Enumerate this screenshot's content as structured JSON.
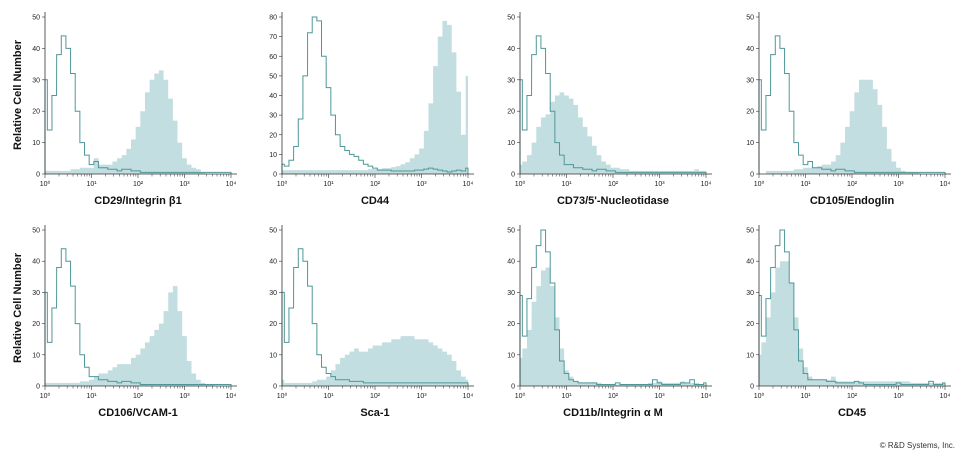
{
  "colors": {
    "stained_fill": "#c2dee0",
    "isotype_line": "#4f9799",
    "axis": "#333333"
  },
  "copyright": "© R&D Systems, Inc.",
  "ylabel": "Relative Cell Number",
  "chart_data": {
    "type": "histogram",
    "x_scale": "log",
    "xlim": [
      1,
      10000
    ],
    "xticks": [
      "10⁰",
      "10¹",
      "10²",
      "10³",
      "10⁴"
    ],
    "x": [
      1,
      1.26,
      1.58,
      2,
      2.51,
      3.16,
      3.98,
      5.01,
      6.31,
      7.94,
      10,
      12.6,
      15.8,
      20,
      25.1,
      31.6,
      39.8,
      50.1,
      63.1,
      79.4,
      100,
      126,
      158,
      200,
      251,
      316,
      398,
      501,
      631,
      794,
      1000,
      1259,
      1585,
      1995,
      2512,
      3162,
      3981,
      5012,
      6310,
      7943,
      10000
    ],
    "panels": [
      {
        "xlabel": "CD29/Integrin β1",
        "ylim": [
          0,
          50
        ],
        "yticks": [
          0,
          10,
          20,
          30,
          40,
          50
        ],
        "isotype": [
          30,
          14,
          25,
          38,
          44,
          40,
          32,
          20,
          10,
          6,
          3,
          4,
          2,
          2,
          1.5,
          1.5,
          1,
          1.5,
          1.5,
          1,
          1,
          0.5,
          0.5,
          0.5,
          0.5,
          0.5,
          0.5,
          0.5,
          0.5,
          0.5,
          0.5,
          0.5,
          0.5,
          0.5,
          0.5,
          0.5,
          0.5,
          0.5,
          0.5,
          0.5,
          0.5
        ],
        "stained": [
          1,
          1,
          1,
          1,
          1,
          1,
          1.5,
          1.5,
          2,
          2,
          2,
          5,
          3,
          3,
          3,
          4,
          5,
          6,
          8,
          11,
          15,
          20,
          26,
          30,
          32,
          33,
          30,
          24,
          17,
          10,
          5,
          3,
          2,
          1.5,
          0.5,
          0,
          0,
          0,
          0,
          0,
          0
        ]
      },
      {
        "xlabel": "CD44",
        "ylim": [
          0,
          80
        ],
        "yticks": [
          0,
          10,
          20,
          30,
          40,
          50,
          60,
          70,
          80
        ],
        "isotype": [
          5,
          4,
          7,
          14,
          28,
          50,
          72,
          80,
          78,
          60,
          44,
          30,
          20,
          14,
          12,
          10,
          9,
          7,
          5,
          4,
          3,
          2,
          2,
          2,
          1.5,
          1.5,
          1.5,
          1.5,
          1.5,
          2,
          2,
          2.5,
          3,
          2.5,
          2,
          1.5,
          1,
          1.5,
          2,
          1.5,
          3
        ],
        "stained": [
          2,
          2,
          2,
          2,
          2,
          2,
          2,
          2,
          2,
          2,
          2,
          2,
          2,
          2,
          2,
          2,
          2,
          2,
          2,
          2.5,
          2.5,
          2.5,
          3,
          3,
          3.5,
          4,
          5,
          6,
          8,
          10,
          13,
          22,
          36,
          55,
          70,
          78,
          76,
          62,
          42,
          20,
          50
        ]
      },
      {
        "xlabel": "CD73/5'-Nucleotidase",
        "ylim": [
          0,
          50
        ],
        "yticks": [
          0,
          10,
          20,
          30,
          40,
          50
        ],
        "isotype": [
          30,
          14,
          25,
          38,
          44,
          40,
          32,
          20,
          10,
          6,
          3,
          3,
          2,
          2,
          1.5,
          1.5,
          1,
          1.5,
          1.5,
          1,
          1,
          0.5,
          0.5,
          0.5,
          0.5,
          0.5,
          0.5,
          0.5,
          0.5,
          0.5,
          0.5,
          0.5,
          0.5,
          0.5,
          0.5,
          0.5,
          0.5,
          0.5,
          0.5,
          0.5,
          0.5
        ],
        "stained": [
          3,
          4,
          6,
          10,
          15,
          18,
          19,
          23,
          25,
          26,
          25,
          24,
          22,
          18,
          15,
          12,
          9,
          6,
          4,
          3,
          2,
          2,
          1.5,
          1.5,
          1,
          1,
          1,
          1,
          1,
          1,
          1,
          1,
          1,
          1,
          1,
          1,
          1,
          1,
          1.5,
          1,
          1
        ]
      },
      {
        "xlabel": "CD105/Endoglin",
        "ylim": [
          0,
          50
        ],
        "yticks": [
          0,
          10,
          20,
          30,
          40,
          50
        ],
        "isotype": [
          30,
          14,
          25,
          38,
          44,
          40,
          32,
          20,
          10,
          6,
          3,
          4,
          2,
          2,
          1.5,
          1.5,
          1,
          1.5,
          1.5,
          1,
          1,
          0.5,
          0.5,
          0.5,
          0.5,
          0.5,
          0.5,
          0.5,
          0.5,
          0.5,
          0.5,
          0.5,
          0.5,
          0.5,
          0.5,
          0.5,
          0.5,
          0.5,
          0.5,
          0.5,
          0.5
        ],
        "stained": [
          0,
          0,
          1,
          1,
          1,
          1,
          1,
          1,
          1.5,
          1.5,
          2,
          2,
          2,
          2.5,
          3,
          3,
          4,
          6,
          10,
          15,
          20,
          26,
          30,
          30,
          30,
          27,
          22,
          15,
          8,
          4,
          2,
          1,
          0.5,
          0.5,
          0.5,
          0,
          0,
          0,
          0,
          0,
          0
        ]
      },
      {
        "xlabel": "CD106/VCAM-1",
        "ylim": [
          0,
          50
        ],
        "yticks": [
          0,
          10,
          20,
          30,
          40,
          50
        ],
        "isotype": [
          30,
          14,
          25,
          38,
          44,
          40,
          32,
          20,
          10,
          6,
          3,
          3,
          2,
          2,
          1.5,
          1.5,
          1,
          1.5,
          1.5,
          1,
          1,
          0.5,
          0.5,
          0.5,
          0.5,
          0.5,
          0.5,
          0.5,
          0.5,
          0.5,
          0.5,
          0.5,
          0.5,
          0.5,
          0.5,
          0.5,
          0.5,
          0.5,
          0.5,
          0.5,
          0.5
        ],
        "stained": [
          1,
          1,
          1,
          1,
          1,
          1,
          1,
          1,
          1.5,
          1.5,
          2,
          3,
          4,
          4,
          5,
          6,
          7,
          7,
          7,
          9,
          10,
          12,
          14,
          16,
          18,
          20,
          24,
          30,
          32,
          24,
          16,
          8,
          4,
          2,
          1,
          0.5,
          0.5,
          0,
          0,
          0,
          0
        ]
      },
      {
        "xlabel": "Sca-1",
        "ylim": [
          0,
          50
        ],
        "yticks": [
          0,
          10,
          20,
          30,
          40,
          50
        ],
        "isotype": [
          30,
          14,
          25,
          38,
          44,
          40,
          32,
          20,
          10,
          6,
          4,
          3,
          2,
          2,
          2,
          1.5,
          1.5,
          1.5,
          1,
          1,
          1,
          1,
          1,
          1,
          1,
          1,
          1,
          1,
          1,
          1,
          1,
          1,
          1,
          1,
          1,
          1,
          1,
          1,
          1,
          1,
          1
        ],
        "stained": [
          2,
          1,
          1,
          1,
          1,
          1,
          1,
          1.5,
          2,
          2,
          3,
          5,
          7,
          9,
          10,
          11,
          12,
          11,
          11,
          12,
          13,
          13,
          14,
          14,
          15,
          15,
          16,
          16,
          16,
          15,
          15,
          15,
          14,
          13,
          12,
          11,
          10,
          8,
          5,
          3,
          2
        ]
      },
      {
        "xlabel": "CD11b/Integrin α M",
        "ylim": [
          0,
          50
        ],
        "yticks": [
          0,
          10,
          20,
          30,
          40,
          50
        ],
        "isotype": [
          29,
          16,
          28,
          38,
          45,
          50,
          43,
          33,
          18,
          8,
          4,
          2,
          1.5,
          1,
          1,
          1,
          1,
          0.5,
          0.5,
          0.5,
          0.5,
          1,
          0.5,
          0.5,
          0.5,
          0.5,
          0.5,
          0.5,
          0.5,
          2,
          1,
          0.5,
          0.5,
          0.5,
          0.5,
          1,
          1,
          2,
          0.5,
          0.5,
          1
        ],
        "stained": [
          9,
          12,
          18,
          27,
          32,
          37,
          38,
          32,
          22,
          12,
          5,
          3,
          1.5,
          1,
          1,
          1,
          1,
          1,
          0.5,
          0.5,
          0.5,
          0.5,
          0.5,
          0.5,
          0.5,
          0.5,
          0.5,
          0.5,
          1,
          1,
          1.5,
          1,
          1,
          1,
          1,
          1.5,
          1,
          1,
          1,
          0.5,
          0.5
        ]
      },
      {
        "xlabel": "CD45",
        "ylim": [
          0,
          50
        ],
        "yticks": [
          0,
          10,
          20,
          30,
          40,
          50
        ],
        "isotype": [
          29,
          16,
          28,
          38,
          45,
          50,
          43,
          33,
          18,
          8,
          4,
          2,
          2,
          2,
          2,
          1.5,
          1.5,
          1,
          1,
          1,
          1,
          1.5,
          1,
          0.5,
          0.5,
          0.5,
          0.5,
          0.5,
          0.5,
          0.5,
          1,
          0.5,
          0.5,
          0.5,
          0.5,
          0.5,
          0.5,
          1.5,
          0.5,
          0.5,
          1
        ],
        "stained": [
          10,
          14,
          22,
          30,
          38,
          40,
          40,
          33,
          22,
          12,
          6,
          3,
          2,
          2,
          2,
          2,
          3,
          1.5,
          1.5,
          1.5,
          1.5,
          1.5,
          1.5,
          1.5,
          1.5,
          1.5,
          1.5,
          1.5,
          1.5,
          1.5,
          1.5,
          1.5,
          1.5,
          1,
          1,
          1,
          1,
          1,
          1,
          1,
          1
        ]
      }
    ]
  }
}
